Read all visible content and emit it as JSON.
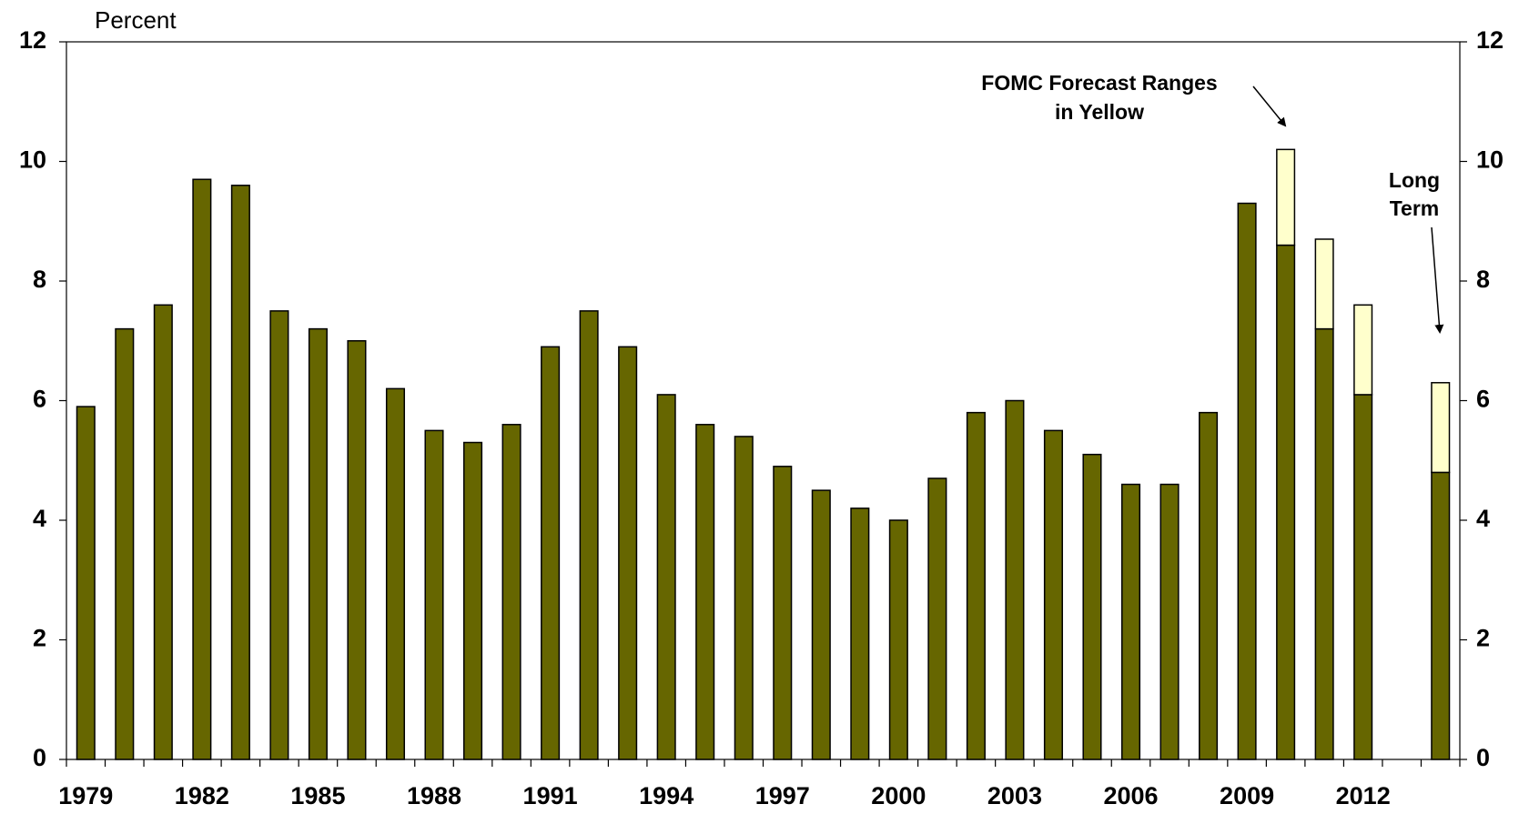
{
  "chart_data": {
    "type": "stacked_bar",
    "y_label": "Percent",
    "categories": [
      "1979",
      null,
      null,
      "1982",
      null,
      null,
      "1985",
      null,
      null,
      "1988",
      null,
      null,
      "1991",
      null,
      null,
      "1994",
      null,
      null,
      "1997",
      null,
      null,
      "2000",
      null,
      null,
      "2003",
      null,
      null,
      "2006",
      null,
      null,
      "2009",
      null,
      null,
      "2012",
      null,
      null
    ],
    "series": [
      {
        "color": "#666600",
        "values": [
          5.9,
          7.2,
          7.6,
          9.7,
          9.6,
          7.5,
          7.2,
          7.0,
          6.2,
          5.5,
          5.3,
          5.6,
          6.9,
          7.5,
          6.9,
          6.1,
          5.6,
          5.4,
          4.9,
          4.5,
          4.2,
          4.0,
          4.7,
          5.8,
          6.0,
          5.5,
          5.1,
          4.6,
          4.6,
          5.8,
          9.3,
          8.6,
          7.2,
          6.1,
          null,
          4.8
        ]
      },
      {
        "color": "#ffffcc",
        "values": [
          null,
          null,
          null,
          null,
          null,
          null,
          null,
          null,
          null,
          null,
          null,
          null,
          null,
          null,
          null,
          null,
          null,
          null,
          null,
          null,
          null,
          null,
          null,
          null,
          null,
          null,
          null,
          null,
          null,
          null,
          null,
          1.6,
          1.5,
          1.5,
          null,
          1.5
        ]
      }
    ],
    "ylim": [
      0,
      12
    ],
    "yticks": [
      0,
      2,
      4,
      6,
      8,
      10,
      12
    ],
    "y2lim": [
      0,
      12
    ],
    "y2ticks": [
      0,
      2,
      4,
      6,
      8,
      10,
      12
    ],
    "annotations": [
      {
        "lines": [
          "FOMC Forecast Ranges",
          "in Yellow"
        ]
      },
      {
        "lines": [
          "Long",
          "Term"
        ]
      }
    ]
  }
}
